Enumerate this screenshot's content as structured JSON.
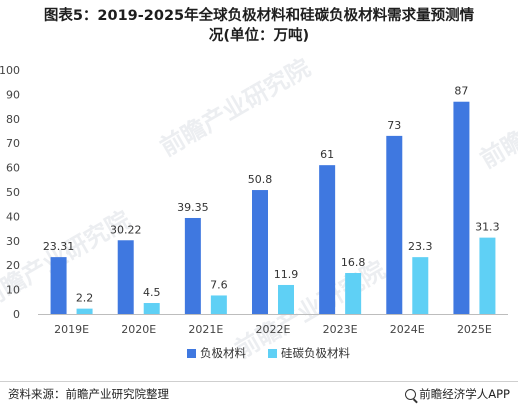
{
  "title": {
    "line1": "图表5：2019-2025年全球负极材料和硅碳负极材料需求量预测情",
    "line2": "况(单位：万吨)"
  },
  "chart_data": {
    "type": "bar",
    "categories": [
      "2019E",
      "2020E",
      "2021E",
      "2022E",
      "2023E",
      "2024E",
      "2025E"
    ],
    "series": [
      {
        "name": "负极材料",
        "values": [
          23.31,
          30.22,
          39.35,
          50.8,
          61,
          73,
          87
        ],
        "labels": [
          "23.31",
          "30.22",
          "39.35",
          "50.8",
          "61",
          "73",
          "87"
        ],
        "color": "#3f78e0"
      },
      {
        "name": "硅碳负极材料",
        "values": [
          2.2,
          4.5,
          7.6,
          11.9,
          16.8,
          23.3,
          31.3
        ],
        "labels": [
          "2.2",
          "4.5",
          "7.6",
          "11.9",
          "16.8",
          "23.3",
          "31.3"
        ],
        "color": "#5fd0f5"
      }
    ],
    "ylim": [
      0,
      100
    ],
    "yticks": [
      0,
      10,
      20,
      30,
      40,
      50,
      60,
      70,
      80,
      90,
      100
    ],
    "grid": false,
    "legend_position": "bottom"
  },
  "footer": {
    "source": "资料来源：前瞻产业研究院整理",
    "brand": "前瞻经济学人APP"
  },
  "watermarks": [
    "前瞻产业研究院",
    "前瞻产业研究院",
    "前瞻产业研究院",
    "前瞻"
  ]
}
